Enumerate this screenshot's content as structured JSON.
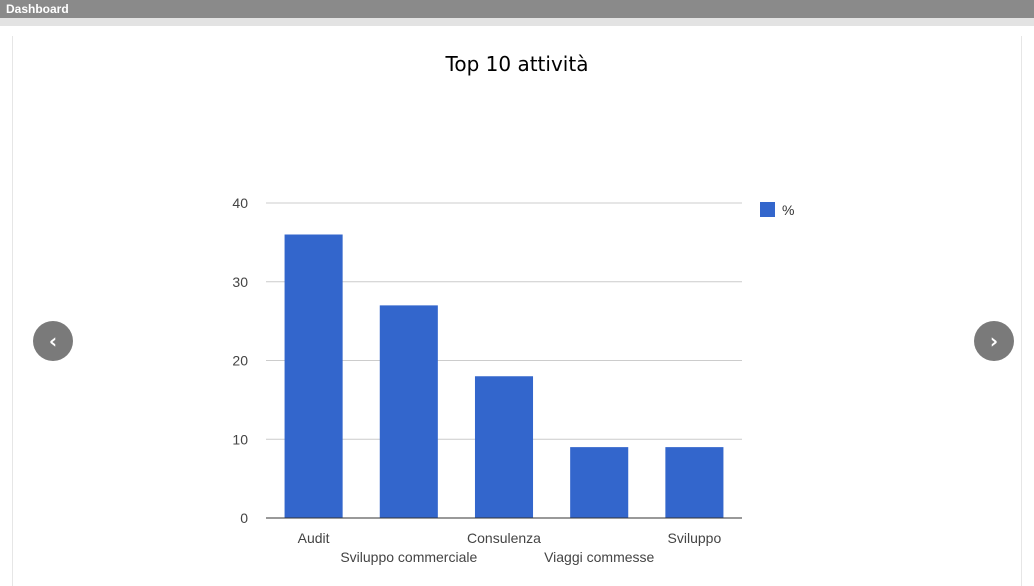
{
  "panel": {
    "title": "Dashboard"
  },
  "nav": {
    "prev_icon": "‹",
    "next_icon": "›"
  },
  "chart_data": {
    "type": "bar",
    "title": "Top 10 attività",
    "categories": [
      "Audit",
      "Sviluppo commerciale",
      "Consulenza",
      "Viaggi commesse",
      "Sviluppo"
    ],
    "series": [
      {
        "name": "%",
        "values": [
          36,
          27,
          18,
          9,
          9
        ]
      }
    ],
    "ylim": [
      0,
      40
    ],
    "yticks": [
      0,
      10,
      20,
      30,
      40
    ],
    "grid": true,
    "legend": "right",
    "colors": {
      "bar": "#3366cc",
      "grid": "#cccccc",
      "axis": "#333333"
    }
  }
}
